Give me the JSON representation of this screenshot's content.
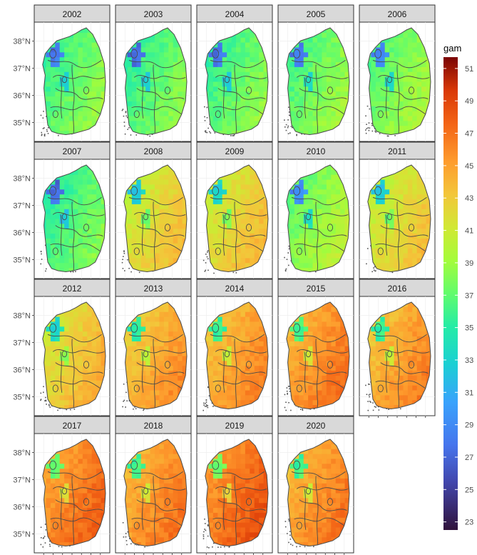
{
  "chart_data": {
    "type": "heatmap",
    "title": "",
    "xlabel": "",
    "ylabel": "",
    "facets": [
      "2002",
      "2003",
      "2004",
      "2005",
      "2006",
      "2007",
      "2008",
      "2009",
      "2010",
      "2011",
      "2012",
      "2013",
      "2014",
      "2015",
      "2016",
      "2017",
      "2018",
      "2019",
      "2020"
    ],
    "facet_mean_values": [
      37.2,
      36.8,
      37.0,
      37.6,
      38.0,
      36.6,
      42.0,
      42.3,
      38.5,
      41.8,
      42.8,
      44.3,
      44.8,
      45.5,
      44.8,
      46.2,
      45.4,
      46.8,
      45.3
    ],
    "y_ticks": [
      "35°N",
      "36°N",
      "37°N",
      "38°N"
    ],
    "y_tick_values": [
      35,
      36,
      37,
      38
    ],
    "ylim": [
      34.3,
      38.7
    ],
    "legend": {
      "title": "gam",
      "ticks": [
        "23",
        "25",
        "27",
        "29",
        "31",
        "33",
        "35",
        "37",
        "39",
        "41",
        "43",
        "45",
        "47",
        "49",
        "51"
      ],
      "tick_values": [
        23,
        25,
        27,
        29,
        31,
        33,
        35,
        37,
        39,
        41,
        43,
        45,
        47,
        49,
        51
      ],
      "range": [
        22.5,
        51.7
      ],
      "position": "right"
    },
    "grid": true,
    "colors": {
      "strip_fill": "#d9d9d9",
      "panel_border": "#333333",
      "grid": "#ebebeb",
      "boundary": "#4a4a4a",
      "islands": "#555555"
    }
  }
}
